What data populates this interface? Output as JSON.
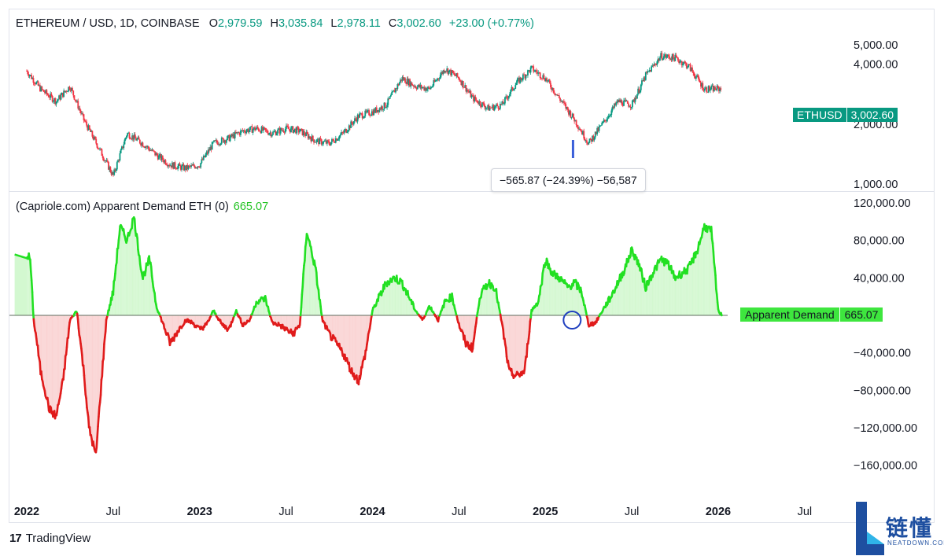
{
  "header": {
    "symbol": "ETHEREUM / USD, 1D, COINBASE",
    "o_key": "O",
    "o_val": "2,979.59",
    "h_key": "H",
    "h_val": "3,035.84",
    "l_key": "L",
    "l_val": "2,978.11",
    "c_key": "C",
    "c_val": "3,002.60",
    "change": "+23.00 (+0.77%)"
  },
  "indicator": {
    "title": "(Capriole.com) Apparent Demand ETH (0)",
    "value": "665.07"
  },
  "price_tag": {
    "symbol": "ETHUSD",
    "price": "3,002.60"
  },
  "indicator_tag": {
    "name": "Apparent Demand",
    "value": "665.07"
  },
  "measure_label": "−565.87 (−24.39%) −56,587",
  "footer": {
    "brand": "TradingView",
    "logo_text": "17"
  },
  "watermark": {
    "cn": "链懂",
    "en": "NEATDOWN.COM",
    "letter": "L"
  },
  "colors": {
    "up": "#089981",
    "down": "#f23645",
    "ind_pos": "#22e022",
    "ind_neg": "#e01b1b",
    "ind_pos_fill": "#d3f8d0",
    "ind_neg_fill": "#fad3d3",
    "circle": "#1f3fbf",
    "measure_bar": "#3a5fd9"
  },
  "chart_data": [
    {
      "type": "line",
      "title": "ETHEREUM / USD, 1D, COINBASE",
      "scale": "log",
      "ylim": [
        1000,
        5000
      ],
      "y_ticks": [
        "5,000.00",
        "4,000.00",
        "2,000.00",
        "1,000.00"
      ],
      "y_tick_values": [
        5000,
        4000,
        2000,
        1000
      ],
      "x": [
        2022.0,
        2022.08,
        2022.17,
        2022.25,
        2022.33,
        2022.42,
        2022.5,
        2022.58,
        2022.67,
        2022.75,
        2022.83,
        2022.92,
        2023.0,
        2023.08,
        2023.17,
        2023.25,
        2023.33,
        2023.42,
        2023.5,
        2023.58,
        2023.67,
        2023.75,
        2023.83,
        2023.92,
        2024.0,
        2024.08,
        2024.17,
        2024.25,
        2024.33,
        2024.42,
        2024.5,
        2024.58,
        2024.67,
        2024.75,
        2024.83,
        2024.92,
        2025.0,
        2025.08,
        2025.17,
        2025.25,
        2025.33,
        2025.42,
        2025.5,
        2025.58,
        2025.67,
        2025.75,
        2025.83,
        2025.92,
        2026.02
      ],
      "close": [
        3700,
        3000,
        2600,
        3100,
        2100,
        1500,
        1100,
        1800,
        1600,
        1400,
        1250,
        1200,
        1250,
        1600,
        1700,
        1850,
        1900,
        1800,
        1900,
        1850,
        1650,
        1600,
        1800,
        2200,
        2300,
        2500,
        3400,
        3100,
        3000,
        3800,
        3400,
        2700,
        2400,
        2500,
        3200,
        3800,
        3400,
        2700,
        2100,
        1600,
        2000,
        2600,
        2500,
        3500,
        4400,
        4300,
        3900,
        3000,
        3003
      ],
      "measure": {
        "change": "−565.87 (−24.39%) −56,587"
      }
    },
    {
      "type": "area",
      "title": "(Capriole.com) Apparent Demand ETH (0)",
      "ylim": [
        -185000,
        125000
      ],
      "y_ticks": [
        "120,000.00",
        "80,000.00",
        "40,000.00",
        "−40,000.00",
        "−80,000.00",
        "−120,000.00",
        "−160,000.00"
      ],
      "y_tick_values": [
        120000,
        80000,
        40000,
        -40000,
        -80000,
        -120000,
        -160000
      ],
      "x": [
        2022.0,
        2022.02,
        2022.04,
        2022.06,
        2022.08,
        2022.1,
        2022.13,
        2022.17,
        2022.21,
        2022.25,
        2022.29,
        2022.33,
        2022.36,
        2022.4,
        2022.42,
        2022.46,
        2022.5,
        2022.54,
        2022.58,
        2022.62,
        2022.67,
        2022.71,
        2022.75,
        2022.79,
        2022.83,
        2022.88,
        2022.92,
        2022.96,
        2023.0,
        2023.04,
        2023.08,
        2023.13,
        2023.17,
        2023.21,
        2023.25,
        2023.29,
        2023.33,
        2023.38,
        2023.42,
        2023.46,
        2023.5,
        2023.54,
        2023.58,
        2023.62,
        2023.67,
        2023.71,
        2023.75,
        2023.79,
        2023.83,
        2023.88,
        2023.92,
        2023.96,
        2024.0,
        2024.04,
        2024.08,
        2024.13,
        2024.17,
        2024.21,
        2024.25,
        2024.29,
        2024.33,
        2024.38,
        2024.42,
        2024.46,
        2024.5,
        2024.54,
        2024.58,
        2024.62,
        2024.67,
        2024.71,
        2024.75,
        2024.79,
        2024.83,
        2024.88,
        2024.92,
        2024.96,
        2025.0,
        2025.04,
        2025.08,
        2025.13,
        2025.17,
        2025.21,
        2025.25,
        2025.29,
        2025.33,
        2025.38,
        2025.42,
        2025.46,
        2025.5,
        2025.54,
        2025.58,
        2025.62,
        2025.67,
        2025.71,
        2025.75,
        2025.79,
        2025.83,
        2025.88,
        2025.92,
        2025.96,
        2026.0,
        2026.02
      ],
      "values": [
        65000,
        60000,
        -5000,
        -30000,
        -60000,
        -75000,
        -100000,
        -108000,
        -70000,
        -5000,
        5000,
        -60000,
        -120000,
        -150000,
        -100000,
        -5000,
        25000,
        95000,
        80000,
        105000,
        40000,
        60000,
        10000,
        -10000,
        -30000,
        -15000,
        -5000,
        -8000,
        -15000,
        -10000,
        5000,
        -10000,
        -15000,
        5000,
        -10000,
        -5000,
        15000,
        18000,
        -8000,
        -10000,
        -15000,
        -20000,
        -10000,
        90000,
        50000,
        -5000,
        -20000,
        -30000,
        -40000,
        -60000,
        -70000,
        -40000,
        5000,
        20000,
        35000,
        40000,
        35000,
        20000,
        5000,
        -5000,
        10000,
        -5000,
        15000,
        20000,
        -10000,
        -30000,
        -35000,
        20000,
        35000,
        30000,
        -10000,
        -60000,
        -65000,
        -60000,
        5000,
        15000,
        60000,
        45000,
        40000,
        30000,
        35000,
        25000,
        -10000,
        -8000,
        5000,
        20000,
        35000,
        50000,
        70000,
        55000,
        30000,
        45000,
        60000,
        55000,
        40000,
        45000,
        50000,
        70000,
        95000,
        90000,
        5000,
        665
      ],
      "annotation": "circle at 2025.15"
    }
  ],
  "x_axis": {
    "labels": [
      "2022",
      "Jul",
      "2023",
      "Jul",
      "2024",
      "Jul",
      "2025",
      "Jul",
      "2026",
      "Jul"
    ],
    "values": [
      2022.0,
      2022.5,
      2023.0,
      2023.5,
      2024.0,
      2024.5,
      2025.0,
      2025.5,
      2026.0,
      2026.5
    ],
    "bold": [
      true,
      false,
      true,
      false,
      true,
      false,
      true,
      false,
      true,
      false
    ]
  }
}
